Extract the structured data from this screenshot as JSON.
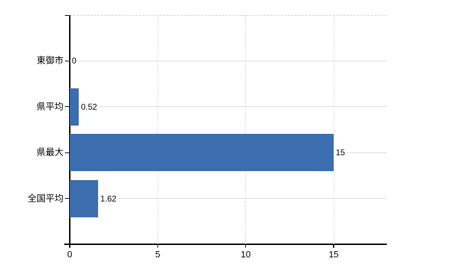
{
  "chart_data": {
    "type": "bar",
    "orientation": "horizontal",
    "title": "",
    "xlabel": "",
    "ylabel": "",
    "categories": [
      "東御市",
      "県平均",
      "県最大",
      "全国平均"
    ],
    "values": [
      0,
      0.52,
      15,
      1.62
    ],
    "value_labels": [
      "0",
      "0.52",
      "15",
      "1.62"
    ],
    "x_ticks": [
      0,
      5,
      10,
      15
    ],
    "x_tick_labels": [
      "0",
      "5",
      "10",
      "15"
    ],
    "xlim": [
      0,
      18.02
    ],
    "grid": true,
    "legend": false,
    "colors": {
      "bar": "#3c6dae",
      "h_gridline": "#d8ded4",
      "v_gridline": "#dcd8dc",
      "plot_border": "#c9d1c9",
      "axis": "#000000",
      "text": "#000000",
      "background": "#ffffff"
    }
  }
}
